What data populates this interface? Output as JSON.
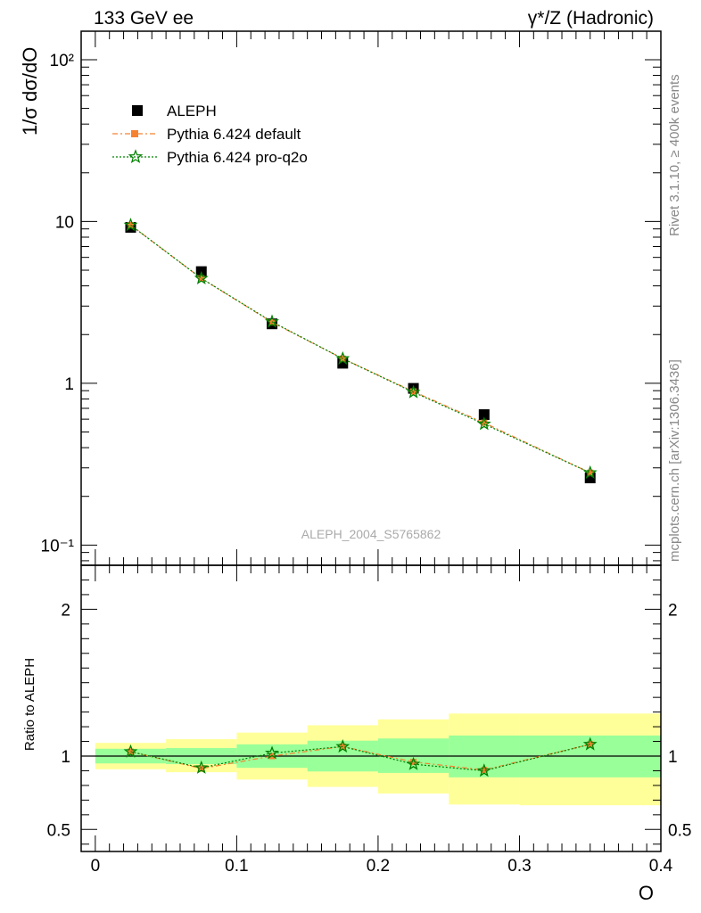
{
  "header": {
    "left": "133 GeV ee",
    "right": "γ*/Z (Hadronic)"
  },
  "side_labels": {
    "rivet": "Rivet 3.1.10, ≥ 400k events",
    "mcplots": "mcplots.cern.ch [arXiv:1306.3436]"
  },
  "watermark": "ALEPH_2004_S5765862",
  "chart_data": [
    {
      "type": "scatter",
      "panel": "main",
      "ylabel": "1/σ  dσ/dO",
      "yscale": "log",
      "ylim": [
        0.075,
        150
      ],
      "xlim": [
        -0.01,
        0.4
      ],
      "ytick_labels": [
        "10⁻¹",
        "1",
        "10",
        "10²"
      ],
      "ytick_values": [
        0.1,
        1,
        10,
        100
      ],
      "legend": {
        "position": "top-left",
        "entries": [
          "ALEPH",
          "Pythia 6.424 default",
          "Pythia 6.424 pro-q2o"
        ]
      },
      "series": [
        {
          "name": "ALEPH",
          "color": "#000000",
          "marker": "square",
          "x": [
            0.025,
            0.075,
            0.125,
            0.175,
            0.225,
            0.275,
            0.35
          ],
          "y": [
            9.2,
            4.9,
            2.33,
            1.33,
            0.93,
            0.64,
            0.26
          ]
        },
        {
          "name": "Pythia 6.424 default",
          "color": "#f58231",
          "marker": "square",
          "linestyle": "dashdot",
          "x": [
            0.025,
            0.075,
            0.125,
            0.175,
            0.225,
            0.275,
            0.35
          ],
          "y": [
            9.5,
            4.45,
            2.38,
            1.42,
            0.89,
            0.57,
            0.28
          ]
        },
        {
          "name": "Pythia 6.424 pro-q2o",
          "color": "#008000",
          "marker": "star",
          "linestyle": "dotted",
          "x": [
            0.025,
            0.075,
            0.125,
            0.175,
            0.225,
            0.275,
            0.35
          ],
          "y": [
            9.5,
            4.45,
            2.4,
            1.42,
            0.88,
            0.56,
            0.28
          ]
        }
      ]
    },
    {
      "type": "scatter",
      "panel": "ratio",
      "xlabel": "O",
      "ylabel": "Ratio to ALEPH",
      "ylim": [
        0.35,
        2.3
      ],
      "xlim": [
        -0.01,
        0.4
      ],
      "xtick_labels": [
        "0",
        "0.1",
        "0.2",
        "0.3",
        "0.4"
      ],
      "xtick_values": [
        0,
        0.1,
        0.2,
        0.3,
        0.4
      ],
      "ytick_labels": [
        "0.5",
        "1",
        "2"
      ],
      "ytick_values": [
        0.5,
        1,
        2
      ],
      "bands": {
        "bin_edges": [
          0,
          0.05,
          0.1,
          0.15,
          0.2,
          0.25,
          0.3,
          0.4
        ],
        "inner": {
          "color": "#99ff99",
          "low": [
            0.95,
            0.945,
            0.92,
            0.895,
            0.885,
            0.855,
            0.855
          ],
          "high": [
            1.05,
            1.055,
            1.08,
            1.105,
            1.12,
            1.14,
            1.14
          ]
        },
        "outer": {
          "color": "#ffff99",
          "low": [
            0.91,
            0.89,
            0.84,
            0.79,
            0.745,
            0.67,
            0.665
          ],
          "high": [
            1.09,
            1.115,
            1.16,
            1.21,
            1.25,
            1.29,
            1.29
          ]
        }
      },
      "series": [
        {
          "name": "Pythia 6.424 default",
          "color": "#f58231",
          "x": [
            0.025,
            0.075,
            0.125,
            0.175,
            0.225,
            0.275,
            0.35
          ],
          "y": [
            1.03,
            0.915,
            1.0,
            1.065,
            0.96,
            0.905,
            1.08
          ]
        },
        {
          "name": "Pythia 6.424 pro-q2o",
          "color": "#008000",
          "x": [
            0.025,
            0.075,
            0.125,
            0.175,
            0.225,
            0.275,
            0.35
          ],
          "y": [
            1.03,
            0.92,
            1.02,
            1.065,
            0.945,
            0.9,
            1.08
          ]
        }
      ]
    }
  ]
}
